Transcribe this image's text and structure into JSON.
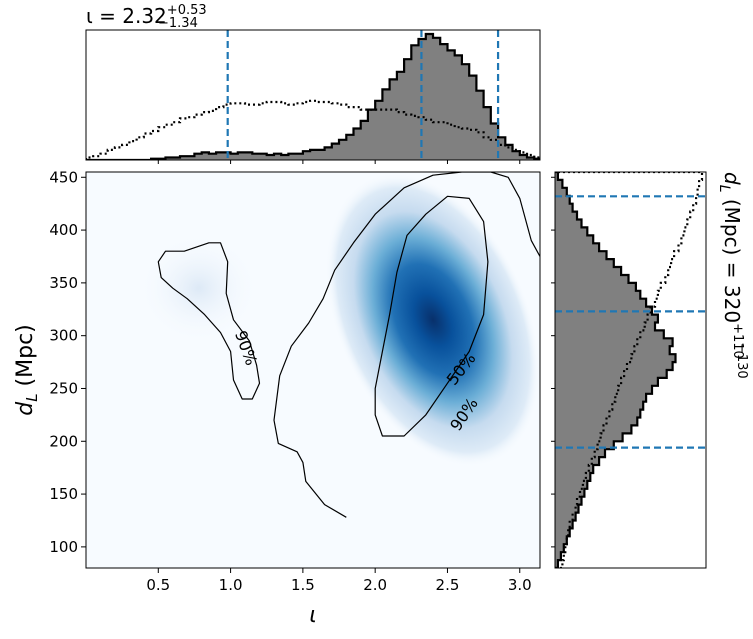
{
  "chart_data": [
    {
      "panel": "top-marginal",
      "type": "histogram",
      "title_var": "ι",
      "title_eq": " = 2.32",
      "title_sup": "+0.53",
      "title_sub": "−1.34",
      "xlim": [
        0.0,
        3.14
      ],
      "quantile_lines": [
        0.98,
        2.32,
        2.85
      ],
      "bins_start": 0.0,
      "bin_width": 0.05,
      "counts": [
        0.0,
        0.0,
        0.0,
        0.0,
        0.0,
        0.0,
        0.0,
        0.0,
        0.0,
        0.01,
        0.01,
        0.02,
        0.02,
        0.03,
        0.03,
        0.05,
        0.06,
        0.05,
        0.06,
        0.06,
        0.05,
        0.06,
        0.06,
        0.05,
        0.05,
        0.04,
        0.05,
        0.04,
        0.05,
        0.05,
        0.07,
        0.08,
        0.08,
        0.1,
        0.13,
        0.16,
        0.2,
        0.25,
        0.31,
        0.4,
        0.47,
        0.56,
        0.64,
        0.7,
        0.8,
        0.91,
        0.96,
        1.0,
        0.97,
        0.92,
        0.87,
        0.83,
        0.76,
        0.67,
        0.55,
        0.42,
        0.29,
        0.18,
        0.12,
        0.07,
        0.04,
        0.02,
        0.01
      ],
      "prior_counts": [
        0.02,
        0.03,
        0.05,
        0.08,
        0.1,
        0.12,
        0.15,
        0.18,
        0.21,
        0.23,
        0.26,
        0.28,
        0.3,
        0.33,
        0.34,
        0.36,
        0.38,
        0.39,
        0.42,
        0.44,
        0.45,
        0.45,
        0.44,
        0.44,
        0.45,
        0.46,
        0.46,
        0.45,
        0.44,
        0.45,
        0.46,
        0.47,
        0.46,
        0.46,
        0.45,
        0.44,
        0.42,
        0.42,
        0.4,
        0.4,
        0.4,
        0.4,
        0.4,
        0.38,
        0.36,
        0.35,
        0.34,
        0.32,
        0.3,
        0.3,
        0.28,
        0.26,
        0.25,
        0.24,
        0.22,
        0.18,
        0.16,
        0.12,
        0.1,
        0.08,
        0.06,
        0.04,
        0.02
      ]
    },
    {
      "panel": "main",
      "type": "heatmap",
      "xlabel": "ι",
      "ylabel": "d",
      "ylabel_sub": "L",
      "ylabel_unit": " (Mpc)",
      "xlim": [
        0.0,
        3.14
      ],
      "ylim": [
        80,
        455
      ],
      "xticks": [
        0.5,
        1.0,
        1.5,
        2.0,
        2.5,
        3.0
      ],
      "xtick_labels": [
        "0.5",
        "1.0",
        "1.5",
        "2.0",
        "2.5",
        "3.0"
      ],
      "yticks": [
        100,
        150,
        200,
        250,
        300,
        350,
        400,
        450
      ],
      "ytick_labels": [
        "100",
        "150",
        "200",
        "250",
        "300",
        "350",
        "400",
        "450"
      ],
      "peak": [
        2.4,
        315
      ],
      "contours": [
        {
          "label": "50%",
          "label_at": [
            2.6,
            268
          ],
          "label_angle": -52,
          "points": [
            [
              2.0,
              250
            ],
            [
              2.05,
              285
            ],
            [
              2.1,
              320
            ],
            [
              2.15,
              360
            ],
            [
              2.22,
              395
            ],
            [
              2.35,
              415
            ],
            [
              2.5,
              432
            ],
            [
              2.65,
              430
            ],
            [
              2.75,
              408
            ],
            [
              2.78,
              370
            ],
            [
              2.75,
              320
            ],
            [
              2.65,
              285
            ],
            [
              2.5,
              255
            ],
            [
              2.35,
              225
            ],
            [
              2.2,
              205
            ],
            [
              2.05,
              205
            ],
            [
              2.0,
              225
            ]
          ]
        },
        {
          "label": "90%",
          "label_at": [
            2.62,
            225
          ],
          "label_angle": -56,
          "points": [
            [
              1.8,
              128
            ],
            [
              1.65,
              140
            ],
            [
              1.52,
              162
            ],
            [
              1.5,
              180
            ],
            [
              1.46,
              190
            ],
            [
              1.33,
              198
            ],
            [
              1.3,
              220
            ],
            [
              1.34,
              262
            ],
            [
              1.42,
              290
            ],
            [
              1.54,
              312
            ],
            [
              1.64,
              335
            ],
            [
              1.72,
              362
            ],
            [
              1.85,
              388
            ],
            [
              2.0,
              415
            ],
            [
              2.2,
              440
            ],
            [
              2.4,
              452
            ],
            [
              2.6,
              455
            ],
            [
              2.8,
              455
            ],
            [
              2.92,
              450
            ],
            [
              3.0,
              430
            ],
            [
              3.08,
              390
            ],
            [
              3.14,
              375
            ]
          ]
        },
        {
          "label": "90%",
          "label_at": [
            1.1,
            288
          ],
          "label_angle": 70,
          "points": [
            [
              0.5,
              370
            ],
            [
              0.55,
              380
            ],
            [
              0.68,
              380
            ],
            [
              0.85,
              388
            ],
            [
              0.93,
              388
            ],
            [
              0.98,
              370
            ],
            [
              0.97,
              340
            ],
            [
              1.02,
              315
            ],
            [
              1.13,
              295
            ],
            [
              1.18,
              272
            ],
            [
              1.2,
              255
            ],
            [
              1.15,
              240
            ],
            [
              1.08,
              240
            ],
            [
              1.02,
              258
            ],
            [
              1.0,
              285
            ],
            [
              0.93,
              303
            ],
            [
              0.82,
              320
            ],
            [
              0.7,
              335
            ],
            [
              0.6,
              345
            ],
            [
              0.52,
              355
            ]
          ]
        }
      ]
    },
    {
      "panel": "right-marginal",
      "type": "histogram",
      "title_var": "d",
      "title_sub_var": "L",
      "title_rest": " (Mpc) = 320",
      "title_sup": "+110",
      "title_sub": "−130",
      "ylim": [
        80,
        455
      ],
      "quantile_lines": [
        194,
        323,
        432
      ],
      "bins_start": 80,
      "bin_width": 7.5,
      "counts": [
        0.02,
        0.04,
        0.06,
        0.08,
        0.1,
        0.12,
        0.14,
        0.16,
        0.18,
        0.2,
        0.22,
        0.24,
        0.26,
        0.3,
        0.34,
        0.4,
        0.46,
        0.52,
        0.56,
        0.58,
        0.6,
        0.62,
        0.66,
        0.7,
        0.76,
        0.8,
        0.82,
        0.78,
        0.8,
        0.74,
        0.68,
        0.7,
        0.66,
        0.62,
        0.58,
        0.55,
        0.5,
        0.45,
        0.4,
        0.35,
        0.3,
        0.26,
        0.22,
        0.18,
        0.15,
        0.12,
        0.1,
        0.08,
        0.05,
        0.02
      ],
      "prior_counts": [
        0.05,
        0.06,
        0.07,
        0.08,
        0.09,
        0.1,
        0.12,
        0.14,
        0.15,
        0.17,
        0.19,
        0.21,
        0.23,
        0.25,
        0.27,
        0.29,
        0.31,
        0.33,
        0.35,
        0.37,
        0.39,
        0.41,
        0.43,
        0.45,
        0.47,
        0.49,
        0.52,
        0.54,
        0.56,
        0.58,
        0.61,
        0.63,
        0.65,
        0.68,
        0.7,
        0.72,
        0.75,
        0.77,
        0.79,
        0.81,
        0.84,
        0.86,
        0.88,
        0.9,
        0.92,
        0.94,
        0.96,
        0.97,
        0.98,
        1.0
      ]
    }
  ]
}
